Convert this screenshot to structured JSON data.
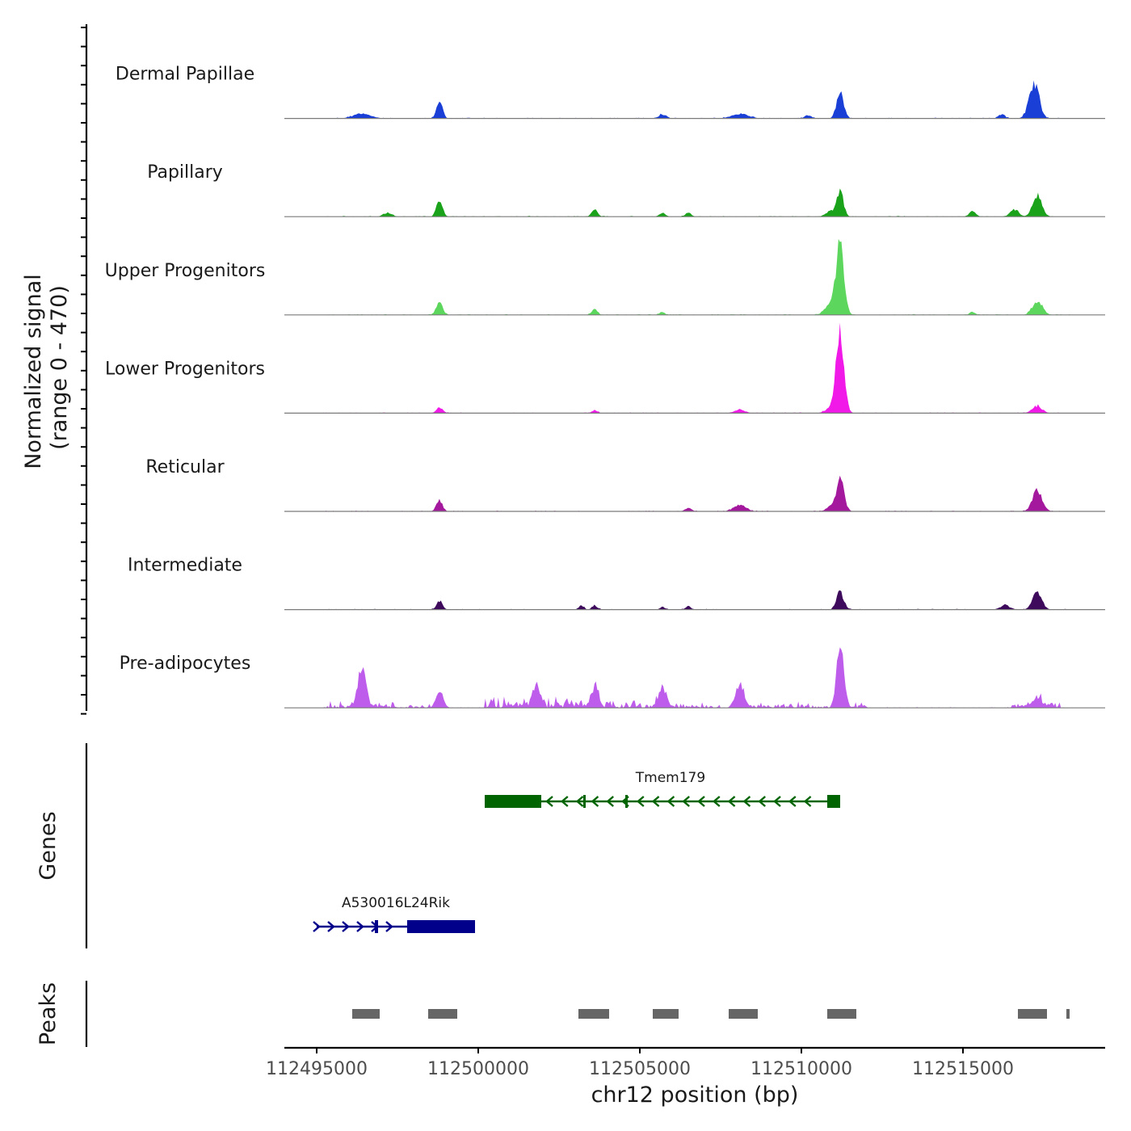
{
  "chart_data": {
    "type": "area",
    "chromosome": "chr12",
    "xlabel": "chr12 position (bp)",
    "ylabel_line1": "Normalized signal",
    "ylabel_line2": "(range 0 - 470)",
    "y_range": [
      0,
      470
    ],
    "x_range": [
      112494000,
      112519400
    ],
    "x_ticks": [
      112495000,
      112500000,
      112505000,
      112510000,
      112515000
    ],
    "x_tick_labels": [
      "112495000",
      "112500000",
      "112505000",
      "112510000",
      "112515000"
    ],
    "signal_start": 112495200,
    "signal_end": 112518300,
    "tracks": [
      {
        "name": "Dermal Papillae",
        "color": "#1a3fd6",
        "peaks": [
          {
            "pos": 112496400,
            "h": 28,
            "w": 250
          },
          {
            "pos": 112498800,
            "h": 105,
            "w": 90
          },
          {
            "pos": 112505700,
            "h": 22,
            "w": 120
          },
          {
            "pos": 112508100,
            "h": 26,
            "w": 250
          },
          {
            "pos": 112510200,
            "h": 18,
            "w": 100
          },
          {
            "pos": 112511200,
            "h": 150,
            "w": 110
          },
          {
            "pos": 112516200,
            "h": 22,
            "w": 100
          },
          {
            "pos": 112517200,
            "h": 200,
            "w": 150
          }
        ]
      },
      {
        "name": "Papillary",
        "color": "#1aa31a",
        "peaks": [
          {
            "pos": 112497200,
            "h": 22,
            "w": 120
          },
          {
            "pos": 112498800,
            "h": 100,
            "w": 90
          },
          {
            "pos": 112503600,
            "h": 38,
            "w": 90
          },
          {
            "pos": 112505700,
            "h": 22,
            "w": 90
          },
          {
            "pos": 112506500,
            "h": 20,
            "w": 90
          },
          {
            "pos": 112510900,
            "h": 30,
            "w": 150
          },
          {
            "pos": 112511200,
            "h": 150,
            "w": 100
          },
          {
            "pos": 112515300,
            "h": 30,
            "w": 100
          },
          {
            "pos": 112516600,
            "h": 40,
            "w": 130
          },
          {
            "pos": 112517300,
            "h": 120,
            "w": 140
          }
        ]
      },
      {
        "name": "Upper Progenitors",
        "color": "#5cd65c",
        "peaks": [
          {
            "pos": 112498800,
            "h": 70,
            "w": 100
          },
          {
            "pos": 112503600,
            "h": 30,
            "w": 90
          },
          {
            "pos": 112505700,
            "h": 15,
            "w": 80
          },
          {
            "pos": 112510900,
            "h": 60,
            "w": 160
          },
          {
            "pos": 112511200,
            "h": 400,
            "w": 120
          },
          {
            "pos": 112515300,
            "h": 18,
            "w": 80
          },
          {
            "pos": 112517300,
            "h": 80,
            "w": 150
          }
        ]
      },
      {
        "name": "Lower Progenitors",
        "color": "#f019e8",
        "peaks": [
          {
            "pos": 112498800,
            "h": 30,
            "w": 100
          },
          {
            "pos": 112503600,
            "h": 18,
            "w": 80
          },
          {
            "pos": 112508100,
            "h": 20,
            "w": 150
          },
          {
            "pos": 112510900,
            "h": 30,
            "w": 150
          },
          {
            "pos": 112511200,
            "h": 470,
            "w": 120
          },
          {
            "pos": 112517300,
            "h": 40,
            "w": 150
          }
        ]
      },
      {
        "name": "Reticular",
        "color": "#a3189c",
        "peaks": [
          {
            "pos": 112498800,
            "h": 60,
            "w": 90
          },
          {
            "pos": 112506500,
            "h": 18,
            "w": 100
          },
          {
            "pos": 112508100,
            "h": 40,
            "w": 180
          },
          {
            "pos": 112510900,
            "h": 25,
            "w": 130
          },
          {
            "pos": 112511200,
            "h": 180,
            "w": 120
          },
          {
            "pos": 112517300,
            "h": 120,
            "w": 150
          }
        ]
      },
      {
        "name": "Intermediate",
        "color": "#3d0a5c",
        "peaks": [
          {
            "pos": 112498800,
            "h": 50,
            "w": 90
          },
          {
            "pos": 112503200,
            "h": 20,
            "w": 80
          },
          {
            "pos": 112503600,
            "h": 25,
            "w": 80
          },
          {
            "pos": 112505700,
            "h": 15,
            "w": 80
          },
          {
            "pos": 112506500,
            "h": 18,
            "w": 80
          },
          {
            "pos": 112511200,
            "h": 100,
            "w": 110
          },
          {
            "pos": 112516300,
            "h": 25,
            "w": 150
          },
          {
            "pos": 112517300,
            "h": 100,
            "w": 140
          }
        ]
      },
      {
        "name": "Pre-adipocytes",
        "color": "#be5ceb",
        "peaks": [
          {
            "pos": 112496400,
            "h": 250,
            "w": 120
          },
          {
            "pos": 112498800,
            "h": 95,
            "w": 110
          },
          {
            "pos": 112501800,
            "h": 140,
            "w": 110
          },
          {
            "pos": 112503600,
            "h": 115,
            "w": 110
          },
          {
            "pos": 112505700,
            "h": 110,
            "w": 120
          },
          {
            "pos": 112508100,
            "h": 105,
            "w": 140
          },
          {
            "pos": 112511200,
            "h": 350,
            "w": 110
          },
          {
            "pos": 112517300,
            "h": 50,
            "w": 160
          }
        ],
        "noise": [
          {
            "from": 112495200,
            "to": 112496200,
            "h": 25
          },
          {
            "from": 112496600,
            "to": 112498500,
            "h": 18
          },
          {
            "from": 112500200,
            "to": 112504500,
            "h": 45
          },
          {
            "from": 112504500,
            "to": 112507500,
            "h": 30
          },
          {
            "from": 112507800,
            "to": 112510800,
            "h": 22
          },
          {
            "from": 112511400,
            "to": 112512000,
            "h": 30
          },
          {
            "from": 112516500,
            "to": 112518000,
            "h": 25
          }
        ]
      }
    ],
    "genes_label": "Genes",
    "genes": [
      {
        "name": "Tmem179",
        "strand": "-",
        "color": "#006400",
        "start": 112500200,
        "end": 112511200,
        "exons": [
          [
            112500200,
            112501950
          ],
          [
            112503250,
            112503300
          ],
          [
            112504550,
            112504620
          ],
          [
            112510800,
            112511200
          ]
        ],
        "arrows_from": 112502200,
        "arrows_to": 112510600,
        "arrow_step": 470
      },
      {
        "name": "A530016L24Rik",
        "strand": "+",
        "color": "#00008b",
        "start": 112495000,
        "end": 112499900,
        "exons": [
          [
            112496800,
            112496900
          ],
          [
            112497800,
            112499900
          ]
        ],
        "arrows_from": 112495000,
        "arrows_to": 112497500,
        "arrow_step": 450
      }
    ],
    "peaks_label": "Peaks",
    "peak_regions": [
      [
        112496100,
        112496950
      ],
      [
        112498450,
        112499350
      ],
      [
        112503100,
        112504050
      ],
      [
        112505400,
        112506200
      ],
      [
        112507750,
        112508650
      ],
      [
        112510800,
        112511700
      ],
      [
        112516700,
        112517600
      ],
      [
        112518200,
        112518300
      ]
    ]
  }
}
